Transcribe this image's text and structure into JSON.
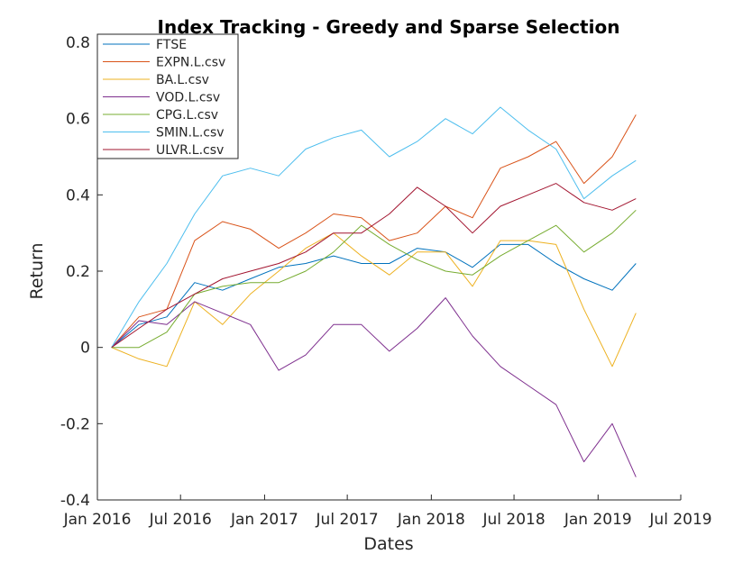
{
  "chart_data": {
    "type": "line",
    "title": "Index Tracking - Greedy and Sparse Selection",
    "xlabel": "Dates",
    "ylabel": "Return",
    "xlim": [
      "2016-01-01",
      "2019-07-01"
    ],
    "ylim": [
      -0.4,
      0.8
    ],
    "xticks": [
      {
        "date": "2016-01-01",
        "label": "Jan 2016"
      },
      {
        "date": "2016-07-01",
        "label": "Jul 2016"
      },
      {
        "date": "2017-01-01",
        "label": "Jan 2017"
      },
      {
        "date": "2017-07-01",
        "label": "Jul 2017"
      },
      {
        "date": "2018-01-01",
        "label": "Jan 2018"
      },
      {
        "date": "2018-07-01",
        "label": "Jul 2018"
      },
      {
        "date": "2019-01-01",
        "label": "Jan 2019"
      },
      {
        "date": "2019-07-01",
        "label": "Jul 2019"
      }
    ],
    "yticks": [
      {
        "value": -0.4,
        "label": "-0.4"
      },
      {
        "value": -0.2,
        "label": "-0.2"
      },
      {
        "value": 0,
        "label": "0"
      },
      {
        "value": 0.2,
        "label": "0.2"
      },
      {
        "value": 0.4,
        "label": "0.4"
      },
      {
        "value": 0.6,
        "label": "0.6"
      },
      {
        "value": 0.8,
        "label": "0.8"
      }
    ],
    "grid": false,
    "legend_position": "top-left",
    "x": [
      "2016-02-01",
      "2016-04-01",
      "2016-06-01",
      "2016-08-01",
      "2016-10-01",
      "2016-12-01",
      "2017-02-01",
      "2017-04-01",
      "2017-06-01",
      "2017-08-01",
      "2017-10-01",
      "2017-12-01",
      "2018-02-01",
      "2018-04-01",
      "2018-06-01",
      "2018-08-01",
      "2018-10-01",
      "2018-12-01",
      "2019-02-01",
      "2019-03-25"
    ],
    "series": [
      {
        "name": "FTSE",
        "color": "#0072BD",
        "values": [
          0,
          0.06,
          0.08,
          0.17,
          0.15,
          0.18,
          0.21,
          0.22,
          0.24,
          0.22,
          0.22,
          0.26,
          0.25,
          0.21,
          0.27,
          0.27,
          0.22,
          0.18,
          0.15,
          0.22
        ]
      },
      {
        "name": "EXPN.L.csv",
        "color": "#D95319",
        "values": [
          0,
          0.08,
          0.1,
          0.28,
          0.33,
          0.31,
          0.26,
          0.3,
          0.35,
          0.34,
          0.28,
          0.3,
          0.37,
          0.34,
          0.47,
          0.5,
          0.54,
          0.43,
          0.5,
          0.61
        ]
      },
      {
        "name": "BA.L.csv",
        "color": "#EDB120",
        "values": [
          0,
          -0.03,
          -0.05,
          0.12,
          0.06,
          0.14,
          0.2,
          0.26,
          0.3,
          0.24,
          0.19,
          0.25,
          0.25,
          0.16,
          0.28,
          0.28,
          0.27,
          0.1,
          -0.05,
          0.09
        ]
      },
      {
        "name": "VOD.L.csv",
        "color": "#7E2F8E",
        "values": [
          0,
          0.07,
          0.06,
          0.12,
          0.09,
          0.06,
          -0.06,
          -0.02,
          0.06,
          0.06,
          -0.01,
          0.05,
          0.13,
          0.03,
          -0.05,
          -0.1,
          -0.15,
          -0.3,
          -0.2,
          -0.34
        ]
      },
      {
        "name": "CPG.L.csv",
        "color": "#77AC30",
        "values": [
          0,
          0.0,
          0.04,
          0.14,
          0.16,
          0.17,
          0.17,
          0.2,
          0.25,
          0.32,
          0.27,
          0.23,
          0.2,
          0.19,
          0.24,
          0.28,
          0.32,
          0.25,
          0.3,
          0.36
        ]
      },
      {
        "name": "SMIN.L.csv",
        "color": "#4DBEEE",
        "values": [
          0,
          0.12,
          0.22,
          0.35,
          0.45,
          0.47,
          0.45,
          0.52,
          0.55,
          0.57,
          0.5,
          0.54,
          0.6,
          0.56,
          0.63,
          0.57,
          0.52,
          0.39,
          0.45,
          0.49
        ]
      },
      {
        "name": "ULVR.L.csv",
        "color": "#A2142F",
        "values": [
          0,
          0.05,
          0.1,
          0.14,
          0.18,
          0.2,
          0.22,
          0.25,
          0.3,
          0.3,
          0.35,
          0.42,
          0.37,
          0.3,
          0.37,
          0.4,
          0.43,
          0.38,
          0.36,
          0.39
        ]
      }
    ]
  }
}
